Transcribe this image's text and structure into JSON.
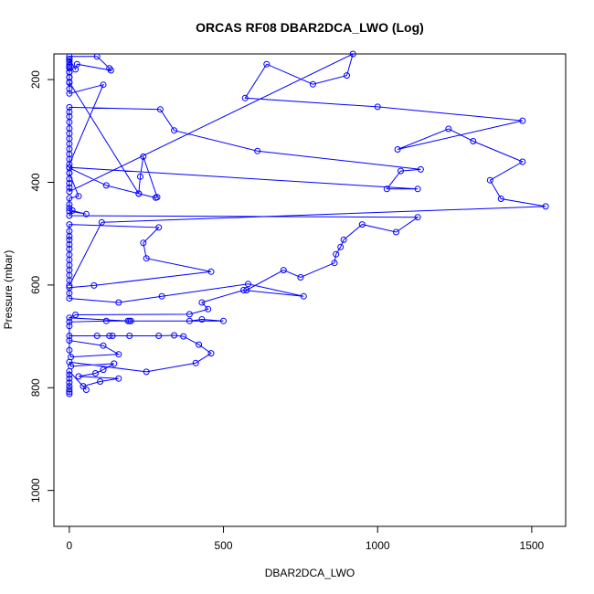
{
  "chart_data": {
    "type": "line",
    "title": "ORCAS RF08 DBAR2DCA_LWO (Log)",
    "xlabel": "DBAR2DCA_LWO",
    "ylabel": "Pressure (mbar)",
    "xlim": [
      -50,
      1610
    ],
    "ylim": [
      1070,
      150
    ],
    "y_inverted": true,
    "x_ticks": [
      0,
      500,
      1000,
      1500
    ],
    "y_ticks": [
      200,
      400,
      600,
      800,
      1000
    ],
    "grid": false,
    "legend": "none",
    "color": "#0000ff",
    "marker": "open-circle",
    "series": [
      {
        "points": [
          [
            0,
            812
          ],
          [
            0,
            808
          ],
          [
            0,
            803
          ],
          [
            0,
            797
          ],
          [
            0,
            790
          ],
          [
            0,
            782
          ],
          [
            0,
            775
          ],
          [
            0,
            768
          ],
          [
            55,
            804
          ],
          [
            45,
            797
          ],
          [
            100,
            788
          ],
          [
            160,
            782
          ],
          [
            30,
            778
          ],
          [
            85,
            772
          ],
          [
            110,
            765
          ],
          [
            145,
            753
          ],
          [
            5,
            758
          ],
          [
            0,
            750
          ],
          [
            250,
            769
          ],
          [
            410,
            752
          ],
          [
            460,
            733
          ],
          [
            420,
            716
          ],
          [
            370,
            700
          ],
          [
            340,
            698
          ],
          [
            290,
            699
          ],
          [
            195,
            699
          ],
          [
            140,
            699
          ],
          [
            130,
            699
          ],
          [
            90,
            699
          ],
          [
            0,
            699
          ],
          [
            0,
            708
          ],
          [
            110,
            718
          ],
          [
            160,
            735
          ],
          [
            5,
            740
          ],
          [
            0,
            727
          ],
          [
            0,
            680
          ],
          [
            0,
            672
          ],
          [
            120,
            670
          ],
          [
            200,
            670
          ],
          [
            195,
            670
          ],
          [
            390,
            670
          ],
          [
            430,
            667
          ],
          [
            500,
            670
          ],
          [
            190,
            670
          ],
          [
            0,
            664
          ],
          [
            20,
            658
          ],
          [
            390,
            657
          ],
          [
            450,
            647
          ],
          [
            430,
            634
          ],
          [
            565,
            610
          ],
          [
            760,
            622
          ],
          [
            580,
            598
          ],
          [
            300,
            622
          ],
          [
            160,
            634
          ],
          [
            0,
            626
          ],
          [
            0,
            616
          ],
          [
            0,
            605
          ],
          [
            80,
            601
          ],
          [
            460,
            574
          ],
          [
            250,
            548
          ],
          [
            240,
            518
          ],
          [
            290,
            488
          ],
          [
            0,
            482
          ],
          [
            0,
            495
          ],
          [
            0,
            505
          ],
          [
            0,
            512
          ],
          [
            0,
            521
          ],
          [
            0,
            530
          ],
          [
            0,
            541
          ],
          [
            0,
            551
          ],
          [
            0,
            561
          ],
          [
            0,
            571
          ],
          [
            0,
            581
          ],
          [
            0,
            591
          ],
          [
            0,
            601
          ],
          [
            105,
            478
          ],
          [
            1545,
            447
          ],
          [
            1400,
            432
          ],
          [
            1365,
            396
          ],
          [
            1470,
            360
          ],
          [
            1310,
            320
          ],
          [
            1230,
            296
          ],
          [
            1065,
            336
          ],
          [
            1470,
            280
          ],
          [
            1000,
            253
          ],
          [
            570,
            236
          ],
          [
            640,
            170
          ],
          [
            790,
            209
          ],
          [
            900,
            192
          ],
          [
            920,
            150
          ],
          [
            0,
            418
          ],
          [
            0,
            410
          ],
          [
            0,
            402
          ],
          [
            0,
            393
          ],
          [
            0,
            382
          ],
          [
            0,
            371
          ],
          [
            1130,
            413
          ],
          [
            1030,
            413
          ],
          [
            1075,
            378
          ],
          [
            1140,
            375
          ],
          [
            610,
            339
          ],
          [
            340,
            299
          ],
          [
            295,
            258
          ],
          [
            0,
            254
          ],
          [
            0,
            263
          ],
          [
            0,
            272
          ],
          [
            0,
            283
          ],
          [
            0,
            295
          ],
          [
            0,
            305
          ],
          [
            0,
            315
          ],
          [
            0,
            325
          ],
          [
            0,
            335
          ],
          [
            0,
            345
          ],
          [
            0,
            355
          ],
          [
            0,
            365
          ],
          [
            110,
            210
          ],
          [
            0,
            227
          ],
          [
            0,
            218
          ],
          [
            0,
            206
          ],
          [
            0,
            196
          ],
          [
            0,
            186
          ],
          [
            0,
            178
          ],
          [
            0,
            172
          ],
          [
            0,
            166
          ],
          [
            0,
            160
          ],
          [
            20,
            180
          ],
          [
            25,
            170
          ],
          [
            135,
            182
          ],
          [
            130,
            178
          ],
          [
            90,
            155
          ],
          [
            0,
            155
          ],
          [
            0,
            160
          ],
          [
            0,
            165
          ],
          [
            0,
            175
          ],
          [
            0,
            185
          ],
          [
            0,
            195
          ],
          [
            0,
            205
          ],
          [
            225,
            422
          ],
          [
            280,
            430
          ],
          [
            285,
            429
          ],
          [
            240,
            350
          ],
          [
            230,
            389
          ],
          [
            225,
            422
          ],
          [
            120,
            406
          ],
          [
            0,
            372
          ],
          [
            0,
            382
          ],
          [
            30,
            427
          ],
          [
            0,
            431
          ],
          [
            0,
            443
          ],
          [
            0,
            450
          ],
          [
            0,
            456
          ],
          [
            55,
            462
          ],
          [
            10,
            455
          ],
          [
            0,
            465
          ],
          [
            1130,
            468
          ],
          [
            1060,
            497
          ],
          [
            950,
            482
          ],
          [
            890,
            512
          ],
          [
            880,
            526
          ],
          [
            865,
            540
          ],
          [
            860,
            557
          ],
          [
            750,
            585
          ],
          [
            695,
            571
          ],
          [
            575,
            610
          ]
        ]
      }
    ]
  }
}
